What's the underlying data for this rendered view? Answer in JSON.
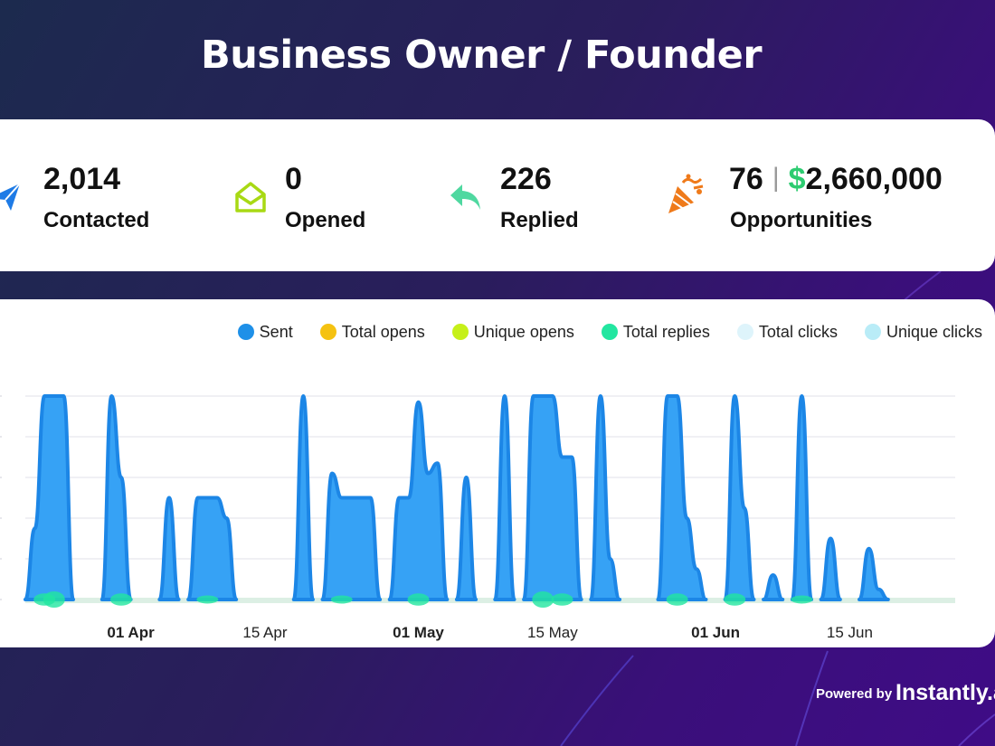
{
  "title": "Business Owner / Founder",
  "stats": {
    "contacted": {
      "value": "2,014",
      "label": "Contacted",
      "icon": "paper-plane-icon",
      "color": "#1e7be6"
    },
    "opened": {
      "value": "0",
      "label": "Opened",
      "icon": "open-envelope-icon",
      "color": "#a8d914"
    },
    "replied": {
      "value": "226",
      "label": "Replied",
      "icon": "reply-arrow-icon",
      "color": "#4fd8a0"
    },
    "opportunities": {
      "count": "76",
      "separator": "|",
      "currency": "$",
      "amount": "2,660,000",
      "label": "Opportunities",
      "icon": "party-popper-icon",
      "color": "#ef7a1a"
    }
  },
  "footer": {
    "powered_by": "Powered by",
    "brand": "Instantly.ai"
  },
  "chart_data": {
    "type": "area",
    "legend": [
      {
        "name": "Sent",
        "color": "#1e90e8"
      },
      {
        "name": "Total opens",
        "color": "#f5c211"
      },
      {
        "name": "Unique opens",
        "color": "#c6f019"
      },
      {
        "name": "Total replies",
        "color": "#22e6a0"
      },
      {
        "name": "Total clicks",
        "color": "#def4fb"
      },
      {
        "name": "Unique clicks",
        "color": "#b9ecf7"
      }
    ],
    "legend_position": "top-right",
    "grid": true,
    "x_ticks": [
      {
        "label": "01 Apr",
        "bold": true,
        "date": "2024-04-01"
      },
      {
        "label": "15 Apr",
        "bold": false,
        "date": "2024-04-15"
      },
      {
        "label": "01 May",
        "bold": true,
        "date": "2024-05-01"
      },
      {
        "label": "15 May",
        "bold": false,
        "date": "2024-05-15"
      },
      {
        "label": "01 Jun",
        "bold": true,
        "date": "2024-06-01"
      },
      {
        "label": "15 Jun",
        "bold": false,
        "date": "2024-06-15"
      }
    ],
    "xlim": [
      "2024-03-21",
      "2024-06-26"
    ],
    "ylim": [
      0,
      100
    ],
    "series": [
      {
        "name": "Sent",
        "points": [
          [
            "2024-03-21",
            0
          ],
          [
            "2024-03-22",
            35
          ],
          [
            "2024-03-23",
            100
          ],
          [
            "2024-03-24",
            100
          ],
          [
            "2024-03-25",
            100
          ],
          [
            "2024-03-26",
            0
          ],
          [
            "2024-03-28",
            0
          ],
          [
            "2024-03-29",
            0
          ],
          [
            "2024-03-30",
            0
          ],
          [
            "2024-03-31",
            0
          ],
          [
            "2024-03-29",
            0
          ],
          [
            "2024-03-30",
            100
          ],
          [
            "2024-03-31",
            60
          ],
          [
            "2024-04-01",
            0
          ],
          [
            "2024-04-04",
            0
          ],
          [
            "2024-04-05",
            50
          ],
          [
            "2024-04-06",
            0
          ],
          [
            "2024-04-07",
            0
          ],
          [
            "2024-04-08",
            50
          ],
          [
            "2024-04-09",
            50
          ],
          [
            "2024-04-10",
            50
          ],
          [
            "2024-04-11",
            40
          ],
          [
            "2024-04-12",
            0
          ],
          [
            "2024-04-18",
            0
          ],
          [
            "2024-04-19",
            100
          ],
          [
            "2024-04-20",
            0
          ],
          [
            "2024-04-21",
            0
          ],
          [
            "2024-04-22",
            62
          ],
          [
            "2024-04-23",
            50
          ],
          [
            "2024-04-24",
            50
          ],
          [
            "2024-04-25",
            50
          ],
          [
            "2024-04-26",
            50
          ],
          [
            "2024-04-27",
            0
          ],
          [
            "2024-04-28",
            0
          ],
          [
            "2024-04-29",
            50
          ],
          [
            "2024-04-30",
            50
          ],
          [
            "2024-05-01",
            97
          ],
          [
            "2024-05-02",
            62
          ],
          [
            "2024-05-03",
            67
          ],
          [
            "2024-05-04",
            0
          ],
          [
            "2024-05-05",
            0
          ],
          [
            "2024-05-06",
            60
          ],
          [
            "2024-05-07",
            0
          ],
          [
            "2024-05-09",
            0
          ],
          [
            "2024-05-10",
            100
          ],
          [
            "2024-05-11",
            0
          ],
          [
            "2024-05-12",
            0
          ],
          [
            "2024-05-13",
            100
          ],
          [
            "2024-05-14",
            100
          ],
          [
            "2024-05-15",
            100
          ],
          [
            "2024-05-16",
            70
          ],
          [
            "2024-05-17",
            70
          ],
          [
            "2024-05-18",
            0
          ],
          [
            "2024-05-19",
            0
          ],
          [
            "2024-05-20",
            100
          ],
          [
            "2024-05-21",
            20
          ],
          [
            "2024-05-22",
            0
          ],
          [
            "2024-05-26",
            0
          ],
          [
            "2024-05-27",
            100
          ],
          [
            "2024-05-28",
            100
          ],
          [
            "2024-05-29",
            40
          ],
          [
            "2024-05-30",
            15
          ],
          [
            "2024-05-31",
            0
          ],
          [
            "2024-06-02",
            0
          ],
          [
            "2024-06-03",
            100
          ],
          [
            "2024-06-04",
            45
          ],
          [
            "2024-06-05",
            0
          ],
          [
            "2024-06-06",
            0
          ],
          [
            "2024-06-07",
            12
          ],
          [
            "2024-06-08",
            0
          ],
          [
            "2024-06-09",
            0
          ],
          [
            "2024-06-10",
            100
          ],
          [
            "2024-06-11",
            0
          ],
          [
            "2024-06-12",
            0
          ],
          [
            "2024-06-13",
            30
          ],
          [
            "2024-06-14",
            0
          ],
          [
            "2024-06-16",
            0
          ],
          [
            "2024-06-17",
            25
          ],
          [
            "2024-06-18",
            5
          ],
          [
            "2024-06-19",
            0
          ]
        ]
      },
      {
        "name": "Total replies",
        "points": [
          [
            "2024-03-23",
            3
          ],
          [
            "2024-03-24",
            4
          ],
          [
            "2024-03-31",
            3
          ],
          [
            "2024-04-09",
            2
          ],
          [
            "2024-04-23",
            2
          ],
          [
            "2024-05-01",
            3
          ],
          [
            "2024-05-14",
            4
          ],
          [
            "2024-05-16",
            3
          ],
          [
            "2024-05-28",
            3
          ],
          [
            "2024-06-03",
            3
          ],
          [
            "2024-06-10",
            2
          ]
        ]
      }
    ]
  }
}
